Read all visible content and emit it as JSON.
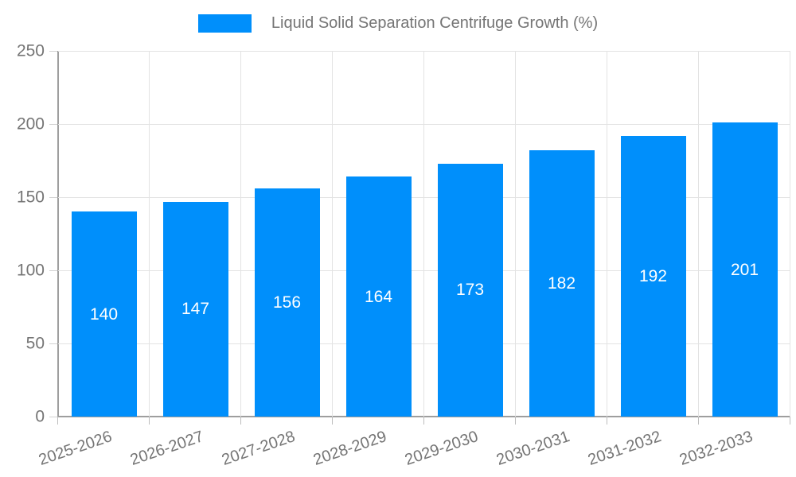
{
  "chart_data": {
    "type": "bar",
    "title": "Liquid Solid Separation Centrifuge Growth (%)",
    "categories": [
      "2025-2026",
      "2026-2027",
      "2027-2028",
      "2028-2029",
      "2029-2030",
      "2030-2031",
      "2031-2032",
      "2032-2033"
    ],
    "values": [
      140,
      147,
      156,
      164,
      173,
      182,
      192,
      201
    ],
    "xlabel": "",
    "ylabel": "",
    "ylim": [
      0,
      250
    ],
    "yticks": [
      0,
      50,
      100,
      150,
      200,
      250
    ],
    "grid": true,
    "legend_position": "top",
    "bar_color": "#008FFB",
    "value_label_color": "#ffffff",
    "axis_text_color": "#757575",
    "grid_color": "#e3e3e3",
    "axis_line_color": "#9e9e9e"
  },
  "legend": {
    "label": "Liquid Solid Separation Centrifuge Growth (%)",
    "swatch_color": "#008FFB"
  }
}
